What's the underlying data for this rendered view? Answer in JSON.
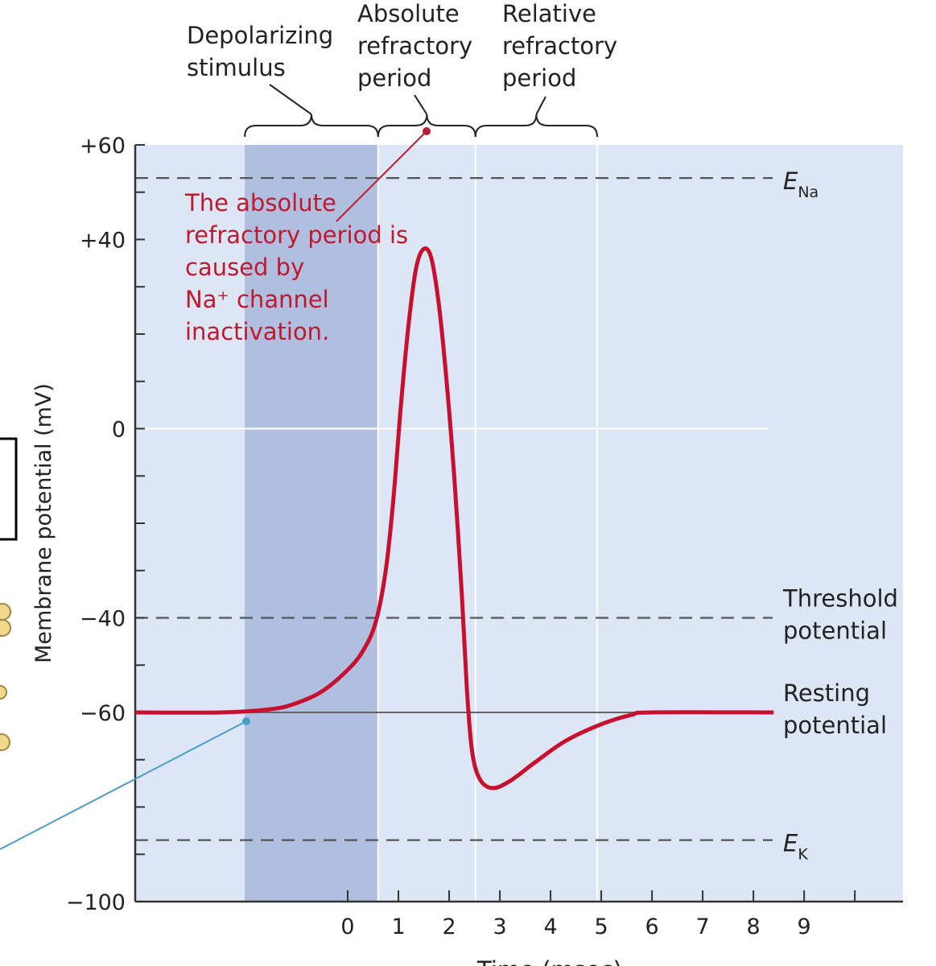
{
  "chart_data": {
    "type": "line",
    "title": "",
    "xlabel": "Time (msec)",
    "ylabel": "Membrane potential (mV)",
    "xlim": [
      -4.19,
      10.95
    ],
    "ylim": [
      -100,
      60
    ],
    "x_ticks": [
      "0",
      "1",
      "2",
      "3",
      "4",
      "5",
      "6",
      "7",
      "8",
      "9"
    ],
    "y_tick_labels": [
      "+60",
      "+40",
      "0",
      "−40",
      "−60",
      "−100"
    ],
    "y_tick_values": [
      60,
      40,
      0,
      -40,
      -60,
      -100
    ],
    "series": [
      {
        "name": "Action potential",
        "color": "#c8102e",
        "x": [
          -4.19,
          -2.5,
          -1.5,
          -1,
          -0.5,
          0,
          0.3,
          0.55,
          0.75,
          0.9,
          1.05,
          1.2,
          1.35,
          1.5,
          1.65,
          1.8,
          1.95,
          2.1,
          2.25,
          2.35,
          2.45,
          2.6,
          2.85,
          3.2,
          3.7,
          4.3,
          5,
          5.6,
          6,
          8.4
        ],
        "y": [
          -60,
          -60,
          -59.3,
          -58,
          -55.5,
          -51,
          -47,
          -41,
          -30,
          -15,
          5,
          22,
          34,
          38,
          36,
          26,
          10,
          -10,
          -35,
          -55,
          -68,
          -74,
          -76,
          -74.5,
          -70.5,
          -66,
          -62.5,
          -60.5,
          -60,
          -60
        ]
      }
    ],
    "reference_lines": [
      {
        "label": "E",
        "sub": "Na",
        "value": 53
      },
      {
        "label": "Threshold potential",
        "lines": [
          "Threshold",
          "potential"
        ],
        "value": -40
      },
      {
        "label": "Resting potential",
        "lines": [
          "Resting",
          "potential"
        ],
        "value": -60
      },
      {
        "label": "E",
        "sub": "K",
        "value": -87
      }
    ],
    "regions": [
      {
        "label": "Depolarizing stimulus",
        "lines": [
          "Depolarizing",
          "stimulus"
        ],
        "from": -2.03,
        "to": 0.6
      },
      {
        "label": "Absolute refractory period",
        "lines": [
          "Absolute",
          "refractory",
          "period"
        ],
        "from": 0.6,
        "to": 2.52
      },
      {
        "label": "Relative refractory period",
        "lines": [
          "Relative",
          "refractory",
          "period"
        ],
        "from": 2.52,
        "to": 4.92
      }
    ],
    "annotation": {
      "lines": [
        "The absolute",
        "refractory period is",
        "caused by",
        "Na⁺ channel",
        "inactivation."
      ]
    },
    "colors": {
      "background": "#dce6f5",
      "stimulus": "#b0bfe0",
      "curve": "#c8102e",
      "annotation": "#c0182d",
      "pointer": "#4a9cc9"
    }
  }
}
